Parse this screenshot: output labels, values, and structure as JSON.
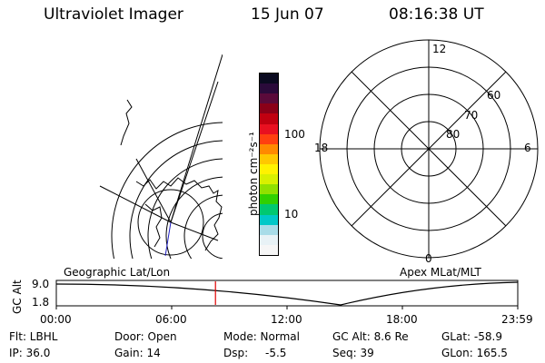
{
  "header": {
    "instrument": "Ultraviolet Imager",
    "date": "15 Jun 07",
    "time": "08:16:38 UT"
  },
  "colorbar": {
    "unit_label": "photon cm⁻²s⁻¹",
    "ticks": [
      "100",
      "10"
    ],
    "colors": [
      "#0a0a20",
      "#2a0a3a",
      "#5a0a3a",
      "#8a0018",
      "#c00010",
      "#e81020",
      "#ff4010",
      "#ff8a00",
      "#ffc800",
      "#fff200",
      "#d8f000",
      "#90e000",
      "#30d000",
      "#00c870",
      "#00c8c8",
      "#a8dce8",
      "#e8f2f6",
      "#f6f6f6"
    ]
  },
  "left_map": {
    "projection_label": "Geographic Lat/Lon"
  },
  "right_map": {
    "projection_label": "Apex MLat/MLT",
    "mlt_labels": {
      "top": "12",
      "left": "18",
      "right": "6",
      "bottom": "0"
    },
    "mlat_labels": [
      "60",
      "70",
      "80"
    ]
  },
  "alt_plot": {
    "ylabel": "GC Alt",
    "ymax": "9.0",
    "ymin": "1.8",
    "time_ticks": [
      "00:00",
      "06:00",
      "12:00",
      "18:00",
      "23:59"
    ],
    "current_time_fraction": 0.3449
  },
  "info": {
    "filter": "Flt: LBHL",
    "ip": "IP: 36.0",
    "door": "Door: Open",
    "gain": "Gain: 14",
    "mode": "Mode: Normal",
    "dsp_label": "Dsp:",
    "dsp_value": "-5.5",
    "gc_alt": "GC Alt: 8.6 Re",
    "seq": "Seq: 39",
    "glat": "GLat: -58.9",
    "glon": "GLon: 165.5"
  },
  "style": {
    "marker_color": "#e00000",
    "track_color": "#2020c0"
  }
}
